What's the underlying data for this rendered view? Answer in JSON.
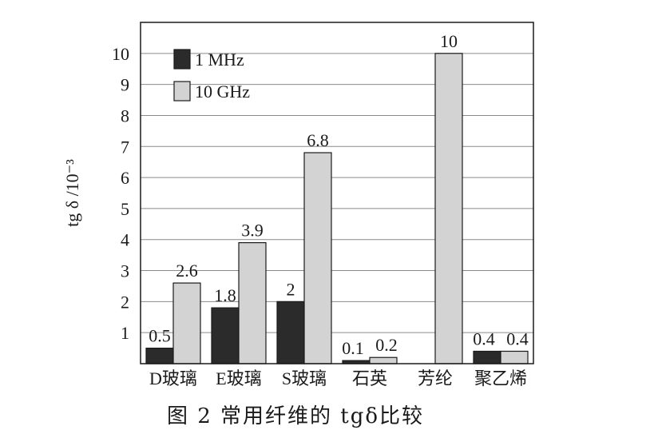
{
  "caption": "图 2  常用纤维的 tgδ比较",
  "chart_data": {
    "type": "bar",
    "ylabel": "tg δ /10⁻³",
    "xlabel": "",
    "ylim": [
      0,
      11
    ],
    "yticks": [
      1,
      2,
      3,
      4,
      5,
      6,
      7,
      8,
      9,
      10
    ],
    "grid": true,
    "legend_position": "top-left",
    "categories": [
      "D玻璃",
      "E玻璃",
      "S玻璃",
      "石英",
      "芳纶",
      "聚乙烯"
    ],
    "series": [
      {
        "name": "1 MHz",
        "color": "#2b2b2b",
        "values": [
          0.5,
          1.8,
          2,
          0.1,
          null,
          0.4
        ]
      },
      {
        "name": "10 GHz",
        "color": "#d3d3d3",
        "values": [
          2.6,
          3.9,
          6.8,
          0.2,
          10,
          0.4
        ]
      }
    ]
  }
}
